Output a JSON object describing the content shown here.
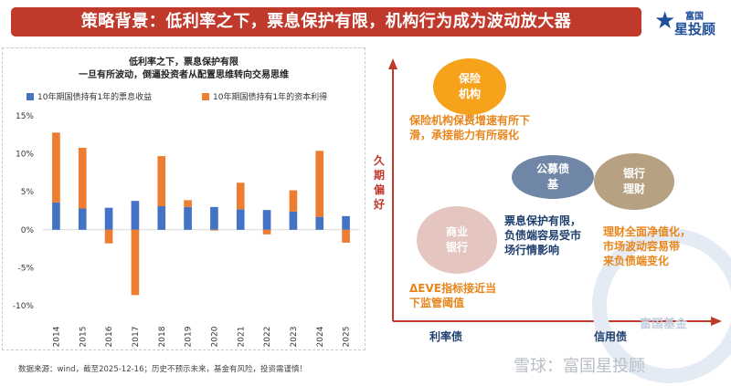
{
  "header": {
    "title": "策略背景：低利率之下，票息保护有限，机构行为成为波动放大器",
    "brand_small": "富国",
    "brand_main": "星投顾"
  },
  "chart_data": {
    "type": "bar",
    "title": "低利率之下，票息保护有限",
    "subtitle": "一旦有所波动，倒逼投资者从配置思维转向交易思维",
    "categories": [
      "2014",
      "2015",
      "2016",
      "2017",
      "2018",
      "2019",
      "2020",
      "2021",
      "2022",
      "2023",
      "2024",
      "2025"
    ],
    "series": [
      {
        "name": "10年期国债持有1年的票息收益",
        "color": "#4472c4",
        "values": [
          3.6,
          2.8,
          2.9,
          3.8,
          3.1,
          3.0,
          3.0,
          2.7,
          2.6,
          2.4,
          1.7,
          1.8
        ]
      },
      {
        "name": "10年期国债持有1年的资本利得",
        "color": "#ed7d31",
        "values": [
          9.2,
          8.0,
          -1.8,
          -8.6,
          6.6,
          0.9,
          -0.1,
          3.5,
          -0.6,
          2.8,
          8.7,
          -1.7
        ]
      }
    ],
    "ylim": [
      -10,
      15
    ],
    "yticks": [
      -10,
      -5,
      0,
      5,
      10,
      15
    ],
    "ytick_labels": [
      "-10%",
      "-5%",
      "0%",
      "5%",
      "10%",
      "15%"
    ],
    "stacked": true,
    "grid": false,
    "legend": "top"
  },
  "diagram": {
    "y_label": "久期偏好",
    "x_labels": [
      "利率债",
      "信用债"
    ],
    "bubbles": {
      "insurance": "保险\n机构",
      "fund": "公募债\n基",
      "wealth": "银行\n理财",
      "bank": "商业\n银行"
    },
    "notes": {
      "insurance": "保险机构保费增速有所下\n滑，承接能力有所弱化",
      "bank_risk": "票息保护有限，\n负债端容易受市\n场行情影响",
      "wealth_risk": "理财全面净值化，\n市场波动容易带\n来负债端变化",
      "eve": "ΔEVE指标接近当\n下监管阈值"
    },
    "watermark": "富国基金"
  },
  "footer": {
    "source": "数据来源：wind，截至2025-12-16；历史不预示未来，基金有风险，投资需谨慎！",
    "snowball": "雪球：富国星投顾"
  }
}
